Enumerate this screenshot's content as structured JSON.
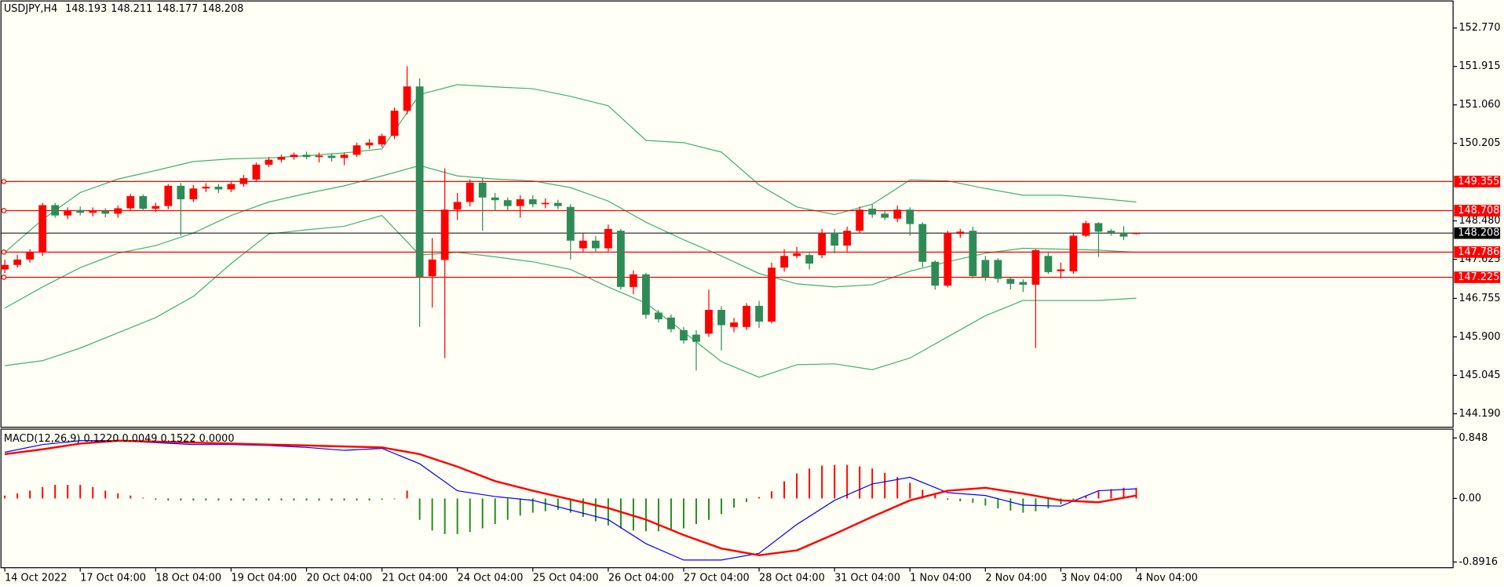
{
  "chart_data": [
    {
      "type": "candlestick",
      "title": "USDJPY,H4",
      "header_values": [
        148.193,
        148.211,
        148.177,
        148.208
      ],
      "up_color": "#ff0000",
      "down_color": "#2e8b57",
      "categories": [
        "14 Oct 2022",
        null,
        null,
        null,
        null,
        null,
        "17 Oct 04:00",
        null,
        null,
        null,
        null,
        null,
        "18 Oct 04:00",
        null,
        null,
        null,
        null,
        null,
        "19 Oct 04:00",
        null,
        null,
        null,
        null,
        null,
        "20 Oct 04:00",
        null,
        null,
        null,
        null,
        null,
        "21 Oct 04:00",
        null,
        null,
        null,
        null,
        null,
        "24 Oct 04:00",
        null,
        null,
        null,
        null,
        null,
        "25 Oct 04:00",
        null,
        null,
        null,
        null,
        null,
        "26 Oct 04:00",
        null,
        null,
        null,
        null,
        null,
        "27 Oct 04:00",
        null,
        null,
        null,
        null,
        null,
        "28 Oct 04:00",
        null,
        null,
        null,
        null,
        null,
        "31 Oct 04:00",
        null,
        null,
        null,
        null,
        null,
        "1 Nov 04:00",
        null,
        null,
        null,
        null,
        null,
        "2 Nov 04:00",
        null,
        null,
        null,
        null,
        null,
        "3 Nov 04:00",
        null,
        null,
        null,
        null,
        null,
        "4 Nov 04:00"
      ],
      "open": [
        147.4,
        147.5,
        147.62,
        147.78,
        148.83,
        148.6,
        148.72,
        148.66,
        148.7,
        148.64,
        148.76,
        149.03,
        148.75,
        148.81,
        149.26,
        148.96,
        149.2,
        149.24,
        149.18,
        149.3,
        149.4,
        149.73,
        149.84,
        149.9,
        149.95,
        149.9,
        149.93,
        149.88,
        149.95,
        150.16,
        150.18,
        150.37,
        150.93,
        151.47,
        147.25,
        147.61,
        148.73,
        148.9,
        149.33,
        149.0,
        148.94,
        148.81,
        148.96,
        148.85,
        148.88,
        148.79,
        147.87,
        148.04,
        147.87,
        148.26,
        147.01,
        147.29,
        146.44,
        146.33,
        146.05,
        145.95,
        145.97,
        146.5,
        146.12,
        146.12,
        146.59,
        146.24,
        147.44,
        147.7,
        147.72,
        147.72,
        148.21,
        147.93,
        148.26,
        148.75,
        148.64,
        148.53,
        148.73,
        148.41,
        147.57,
        147.04,
        148.19,
        148.26,
        147.61,
        147.61,
        147.19,
        147.12,
        147.06,
        147.7,
        147.36,
        147.36,
        148.15,
        148.43,
        148.26,
        148.21,
        148.193
      ],
      "high": [
        147.62,
        147.72,
        147.85,
        148.88,
        148.88,
        148.78,
        148.8,
        148.78,
        148.76,
        148.82,
        149.08,
        149.07,
        148.88,
        149.3,
        149.32,
        149.28,
        149.32,
        149.3,
        149.36,
        149.5,
        149.78,
        149.9,
        149.95,
        150.0,
        150.02,
        150.0,
        149.98,
        150.0,
        150.22,
        150.3,
        150.42,
        151.0,
        151.92,
        151.65,
        148.1,
        149.65,
        149.1,
        149.4,
        149.43,
        149.1,
        149.0,
        149.05,
        149.05,
        148.98,
        148.95,
        148.85,
        148.2,
        148.14,
        148.4,
        148.3,
        147.38,
        147.32,
        146.5,
        146.4,
        146.12,
        146.05,
        146.95,
        146.58,
        146.32,
        146.65,
        146.7,
        147.55,
        147.85,
        147.9,
        147.8,
        148.3,
        148.3,
        148.35,
        148.8,
        148.85,
        148.7,
        148.82,
        148.78,
        148.45,
        147.6,
        148.26,
        148.3,
        148.35,
        147.7,
        147.65,
        147.22,
        147.18,
        147.85,
        147.78,
        147.55,
        148.2,
        148.48,
        148.45,
        148.3,
        148.36,
        148.211
      ],
      "low": [
        147.32,
        147.44,
        147.55,
        147.7,
        148.55,
        148.52,
        148.6,
        148.58,
        148.56,
        148.55,
        148.7,
        148.7,
        148.68,
        148.74,
        148.15,
        148.9,
        149.12,
        149.1,
        149.12,
        149.24,
        149.35,
        149.68,
        149.78,
        149.84,
        149.85,
        149.78,
        149.8,
        149.72,
        149.9,
        150.08,
        150.12,
        150.3,
        150.85,
        146.12,
        146.55,
        145.43,
        148.5,
        148.8,
        148.26,
        148.7,
        148.72,
        148.55,
        148.78,
        148.76,
        148.74,
        147.62,
        147.8,
        147.8,
        147.8,
        146.95,
        146.85,
        146.3,
        146.22,
        146.0,
        145.75,
        145.15,
        145.9,
        145.6,
        146.0,
        146.05,
        146.1,
        146.2,
        147.35,
        147.65,
        147.4,
        147.65,
        147.75,
        147.8,
        148.2,
        148.55,
        148.5,
        148.45,
        148.15,
        147.45,
        146.95,
        147.0,
        148.1,
        147.2,
        147.15,
        147.1,
        146.95,
        146.9,
        145.65,
        147.3,
        147.2,
        147.3,
        148.12,
        147.68,
        148.15,
        148.05,
        148.177
      ],
      "close": [
        147.5,
        147.62,
        147.78,
        148.83,
        148.6,
        148.7,
        148.66,
        148.7,
        148.64,
        148.76,
        149.03,
        148.75,
        148.81,
        149.26,
        148.96,
        149.2,
        149.24,
        149.18,
        149.3,
        149.43,
        149.73,
        149.84,
        149.9,
        149.95,
        149.9,
        149.93,
        149.88,
        149.95,
        150.16,
        150.22,
        150.37,
        150.93,
        151.47,
        147.23,
        147.62,
        148.73,
        148.9,
        149.33,
        149.0,
        148.94,
        148.81,
        148.96,
        148.85,
        148.88,
        148.81,
        148.04,
        148.04,
        147.87,
        148.3,
        147.01,
        147.29,
        146.39,
        146.29,
        146.07,
        145.82,
        145.79,
        146.5,
        146.16,
        146.22,
        146.59,
        146.24,
        147.44,
        147.7,
        147.76,
        147.53,
        148.21,
        147.93,
        148.26,
        148.73,
        148.62,
        148.55,
        148.73,
        148.41,
        147.57,
        147.04,
        148.21,
        148.24,
        147.25,
        147.23,
        147.19,
        147.08,
        147.06,
        147.83,
        147.34,
        147.4,
        148.15,
        148.43,
        148.24,
        148.21,
        148.13,
        148.208
      ],
      "bands": {
        "color": "#3cb371",
        "x": [
          0,
          3,
          6,
          9,
          12,
          15,
          18,
          21,
          24,
          27,
          30,
          33,
          36,
          39,
          42,
          45,
          48,
          51,
          54,
          57,
          60,
          63,
          66,
          69,
          72,
          75,
          78,
          81,
          84,
          87,
          90
        ],
        "upper": [
          147.78,
          148.51,
          149.11,
          149.41,
          149.6,
          149.8,
          149.86,
          149.88,
          149.93,
          149.99,
          150.08,
          151.29,
          151.51,
          151.46,
          151.42,
          151.25,
          151.04,
          150.27,
          150.22,
          150.01,
          149.28,
          148.79,
          148.62,
          148.85,
          149.39,
          149.37,
          149.2,
          149.05,
          149.05,
          148.98,
          148.9
        ],
        "middle": [
          146.54,
          147.01,
          147.44,
          147.76,
          147.93,
          148.21,
          148.6,
          148.9,
          149.09,
          149.26,
          149.48,
          149.71,
          149.48,
          149.41,
          149.37,
          149.22,
          148.92,
          148.45,
          148.06,
          147.7,
          147.31,
          147.08,
          147.01,
          147.06,
          147.36,
          147.57,
          147.76,
          147.87,
          147.85,
          147.83,
          147.78
        ],
        "lower": [
          145.26,
          145.37,
          145.65,
          145.99,
          146.33,
          146.8,
          147.53,
          148.19,
          148.28,
          148.36,
          148.6,
          147.72,
          147.78,
          147.68,
          147.57,
          147.4,
          147.01,
          146.65,
          146.01,
          145.35,
          145.0,
          145.28,
          145.3,
          145.17,
          145.43,
          145.9,
          146.37,
          146.71,
          146.71,
          146.71,
          146.76
        ]
      },
      "levels": [
        149.355,
        148.708,
        147.786,
        147.225
      ],
      "level_color": "#ff0000",
      "ylim": [
        143.89,
        153.35
      ],
      "yticks": [
        {
          "value": 152.77,
          "label": "152.770"
        },
        151.915,
        {
          "value": 151.06,
          "label": "151.060"
        },
        150.205,
        {
          "value": 148.48,
          "label": "148.480"
        },
        147.625,
        146.755,
        {
          "value": 145.9,
          "label": "145.900"
        },
        145.045,
        {
          "value": 144.19,
          "label": "144.190"
        }
      ]
    },
    {
      "type": "macd",
      "title": "MACD(12,26,9) 0.1220 0.0049 0.1522 0.0000",
      "up_color": "#ff0000",
      "down_color": "#228b22",
      "histogram": [
        0.04,
        0.07,
        0.11,
        0.16,
        0.19,
        0.19,
        0.19,
        0.16,
        0.11,
        0.07,
        0.04,
        0.01,
        -0.02,
        -0.03,
        -0.03,
        -0.03,
        -0.03,
        -0.03,
        -0.03,
        -0.03,
        -0.03,
        -0.03,
        -0.03,
        -0.03,
        -0.03,
        -0.03,
        -0.03,
        -0.03,
        -0.03,
        -0.03,
        -0.02,
        -0.01,
        0.11,
        -0.3,
        -0.45,
        -0.5,
        -0.5,
        -0.47,
        -0.42,
        -0.36,
        -0.3,
        -0.24,
        -0.2,
        -0.18,
        -0.16,
        -0.2,
        -0.26,
        -0.32,
        -0.38,
        -0.42,
        -0.45,
        -0.46,
        -0.46,
        -0.45,
        -0.42,
        -0.36,
        -0.3,
        -0.22,
        -0.13,
        -0.05,
        0.02,
        0.1,
        0.24,
        0.35,
        0.42,
        0.46,
        0.47,
        0.47,
        0.45,
        0.42,
        0.36,
        0.3,
        0.22,
        0.12,
        0.05,
        -0.02,
        -0.04,
        -0.06,
        -0.1,
        -0.14,
        -0.17,
        -0.2,
        -0.18,
        -0.14,
        -0.08,
        -0.03,
        0.04,
        0.1,
        0.13,
        0.15,
        0.15
      ],
      "x": [
        0,
        3,
        6,
        9,
        12,
        15,
        18,
        21,
        24,
        27,
        30,
        33,
        36,
        39,
        42,
        45,
        48,
        51,
        54,
        57,
        60,
        63,
        66,
        69,
        72,
        75,
        78,
        81,
        84,
        87,
        90
      ],
      "series": [
        {
          "color": "#0000ff",
          "values": [
            0.648,
            0.756,
            0.81,
            0.81,
            0.783,
            0.756,
            0.756,
            0.743,
            0.716,
            0.675,
            0.702,
            0.486,
            0.108,
            0.027,
            -0.027,
            -0.162,
            -0.297,
            -0.635,
            -0.864,
            -0.864,
            -0.77,
            -0.365,
            -0.027,
            0.203,
            0.297,
            0.081,
            0.041,
            -0.095,
            -0.108,
            0.108,
            0.135
          ]
        },
        {
          "color": "#ff0000",
          "values": [
            0.621,
            0.689,
            0.77,
            0.81,
            0.797,
            0.783,
            0.77,
            0.756,
            0.743,
            0.729,
            0.716,
            0.621,
            0.446,
            0.243,
            0.108,
            -0.014,
            -0.135,
            -0.297,
            -0.513,
            -0.702,
            -0.797,
            -0.729,
            -0.5,
            -0.257,
            -0.027,
            0.108,
            0.149,
            0.068,
            -0.027,
            -0.054,
            0.041
          ]
        }
      ],
      "ylim": [
        -0.972,
        0.972
      ],
      "yticks": [
        0.848,
        {
          "value": 0,
          "label": "0.00"
        },
        -0.8916
      ]
    }
  ]
}
